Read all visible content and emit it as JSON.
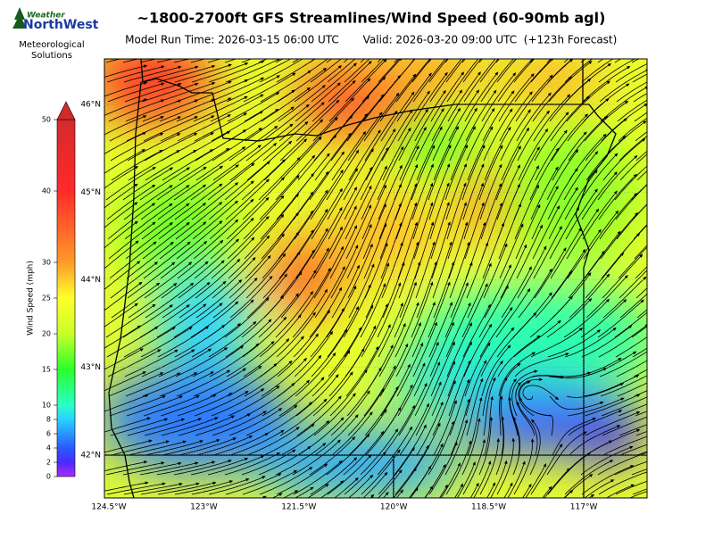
{
  "header": {
    "title": "~1800-2700ft GFS Streamlines/Wind Speed (60-90mb agl)",
    "model_run": "Model Run Time: 2026-03-15 06:00 UTC",
    "valid": "Valid: 2026-03-20 09:00 UTC  (+123h Forecast)"
  },
  "logo": {
    "brand_top": "Weather",
    "brand_bottom": "NorthWest",
    "caption": [
      "Meteorological",
      "Solutions"
    ]
  },
  "colorbar": {
    "label": "Wind Speed (mph)",
    "lim": [
      0,
      50
    ],
    "ticks": [
      0,
      2,
      4,
      6,
      8,
      10,
      15,
      20,
      25,
      30,
      40,
      50
    ]
  },
  "map": {
    "xlim": [
      -124.57,
      -116.0
    ],
    "ylim": [
      41.51,
      46.52
    ],
    "xticks": [
      {
        "value": -124.5,
        "label": "124.5°W"
      },
      {
        "value": -123,
        "label": "123°W"
      },
      {
        "value": -121.5,
        "label": "121.5°W"
      },
      {
        "value": -120,
        "label": "120°W"
      },
      {
        "value": -118.5,
        "label": "118.5°W"
      },
      {
        "value": -117,
        "label": "117°W"
      }
    ],
    "yticks": [
      {
        "value": 46,
        "label": "46°N"
      },
      {
        "value": 45,
        "label": "45°N"
      },
      {
        "value": 44,
        "label": "44°N"
      },
      {
        "value": 43,
        "label": "43°N"
      },
      {
        "value": 42,
        "label": "42°N"
      }
    ]
  }
}
